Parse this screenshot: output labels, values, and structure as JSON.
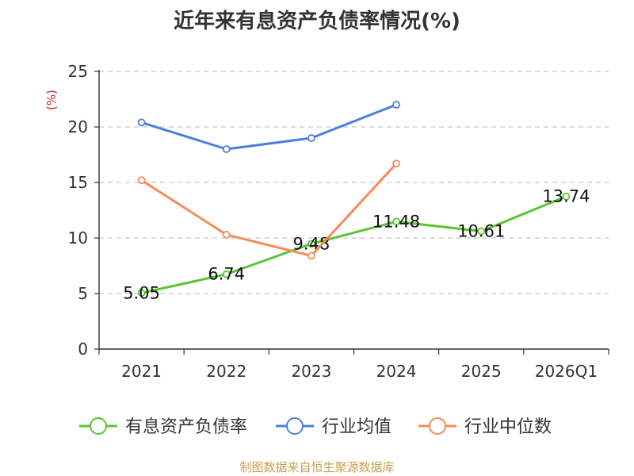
{
  "chart_data": {
    "type": "line",
    "title": "近年来有息资产负债率情况(%)",
    "ylabel": "(%)",
    "xlabel": "",
    "ylim": [
      0,
      25
    ],
    "yticks": [
      0,
      5,
      10,
      15,
      20,
      25
    ],
    "categories": [
      "2021",
      "2022",
      "2023",
      "2024",
      "2025",
      "2026Q1"
    ],
    "grid": true,
    "legend_position": "bottom",
    "series": [
      {
        "name": "有息资产负债率",
        "color": "#5cc334",
        "values": [
          5.05,
          6.74,
          9.48,
          11.48,
          10.61,
          13.74
        ],
        "show_labels": true
      },
      {
        "name": "行业均值",
        "color": "#4c7fdb",
        "values": [
          20.4,
          18.0,
          19.0,
          22.0,
          null,
          null
        ],
        "show_labels": false
      },
      {
        "name": "行业中位数",
        "color": "#f58c5a",
        "values": [
          15.2,
          10.3,
          8.4,
          16.7,
          null,
          null
        ],
        "show_labels": false
      }
    ]
  },
  "source": "制图数据来自恒生聚源数据库"
}
